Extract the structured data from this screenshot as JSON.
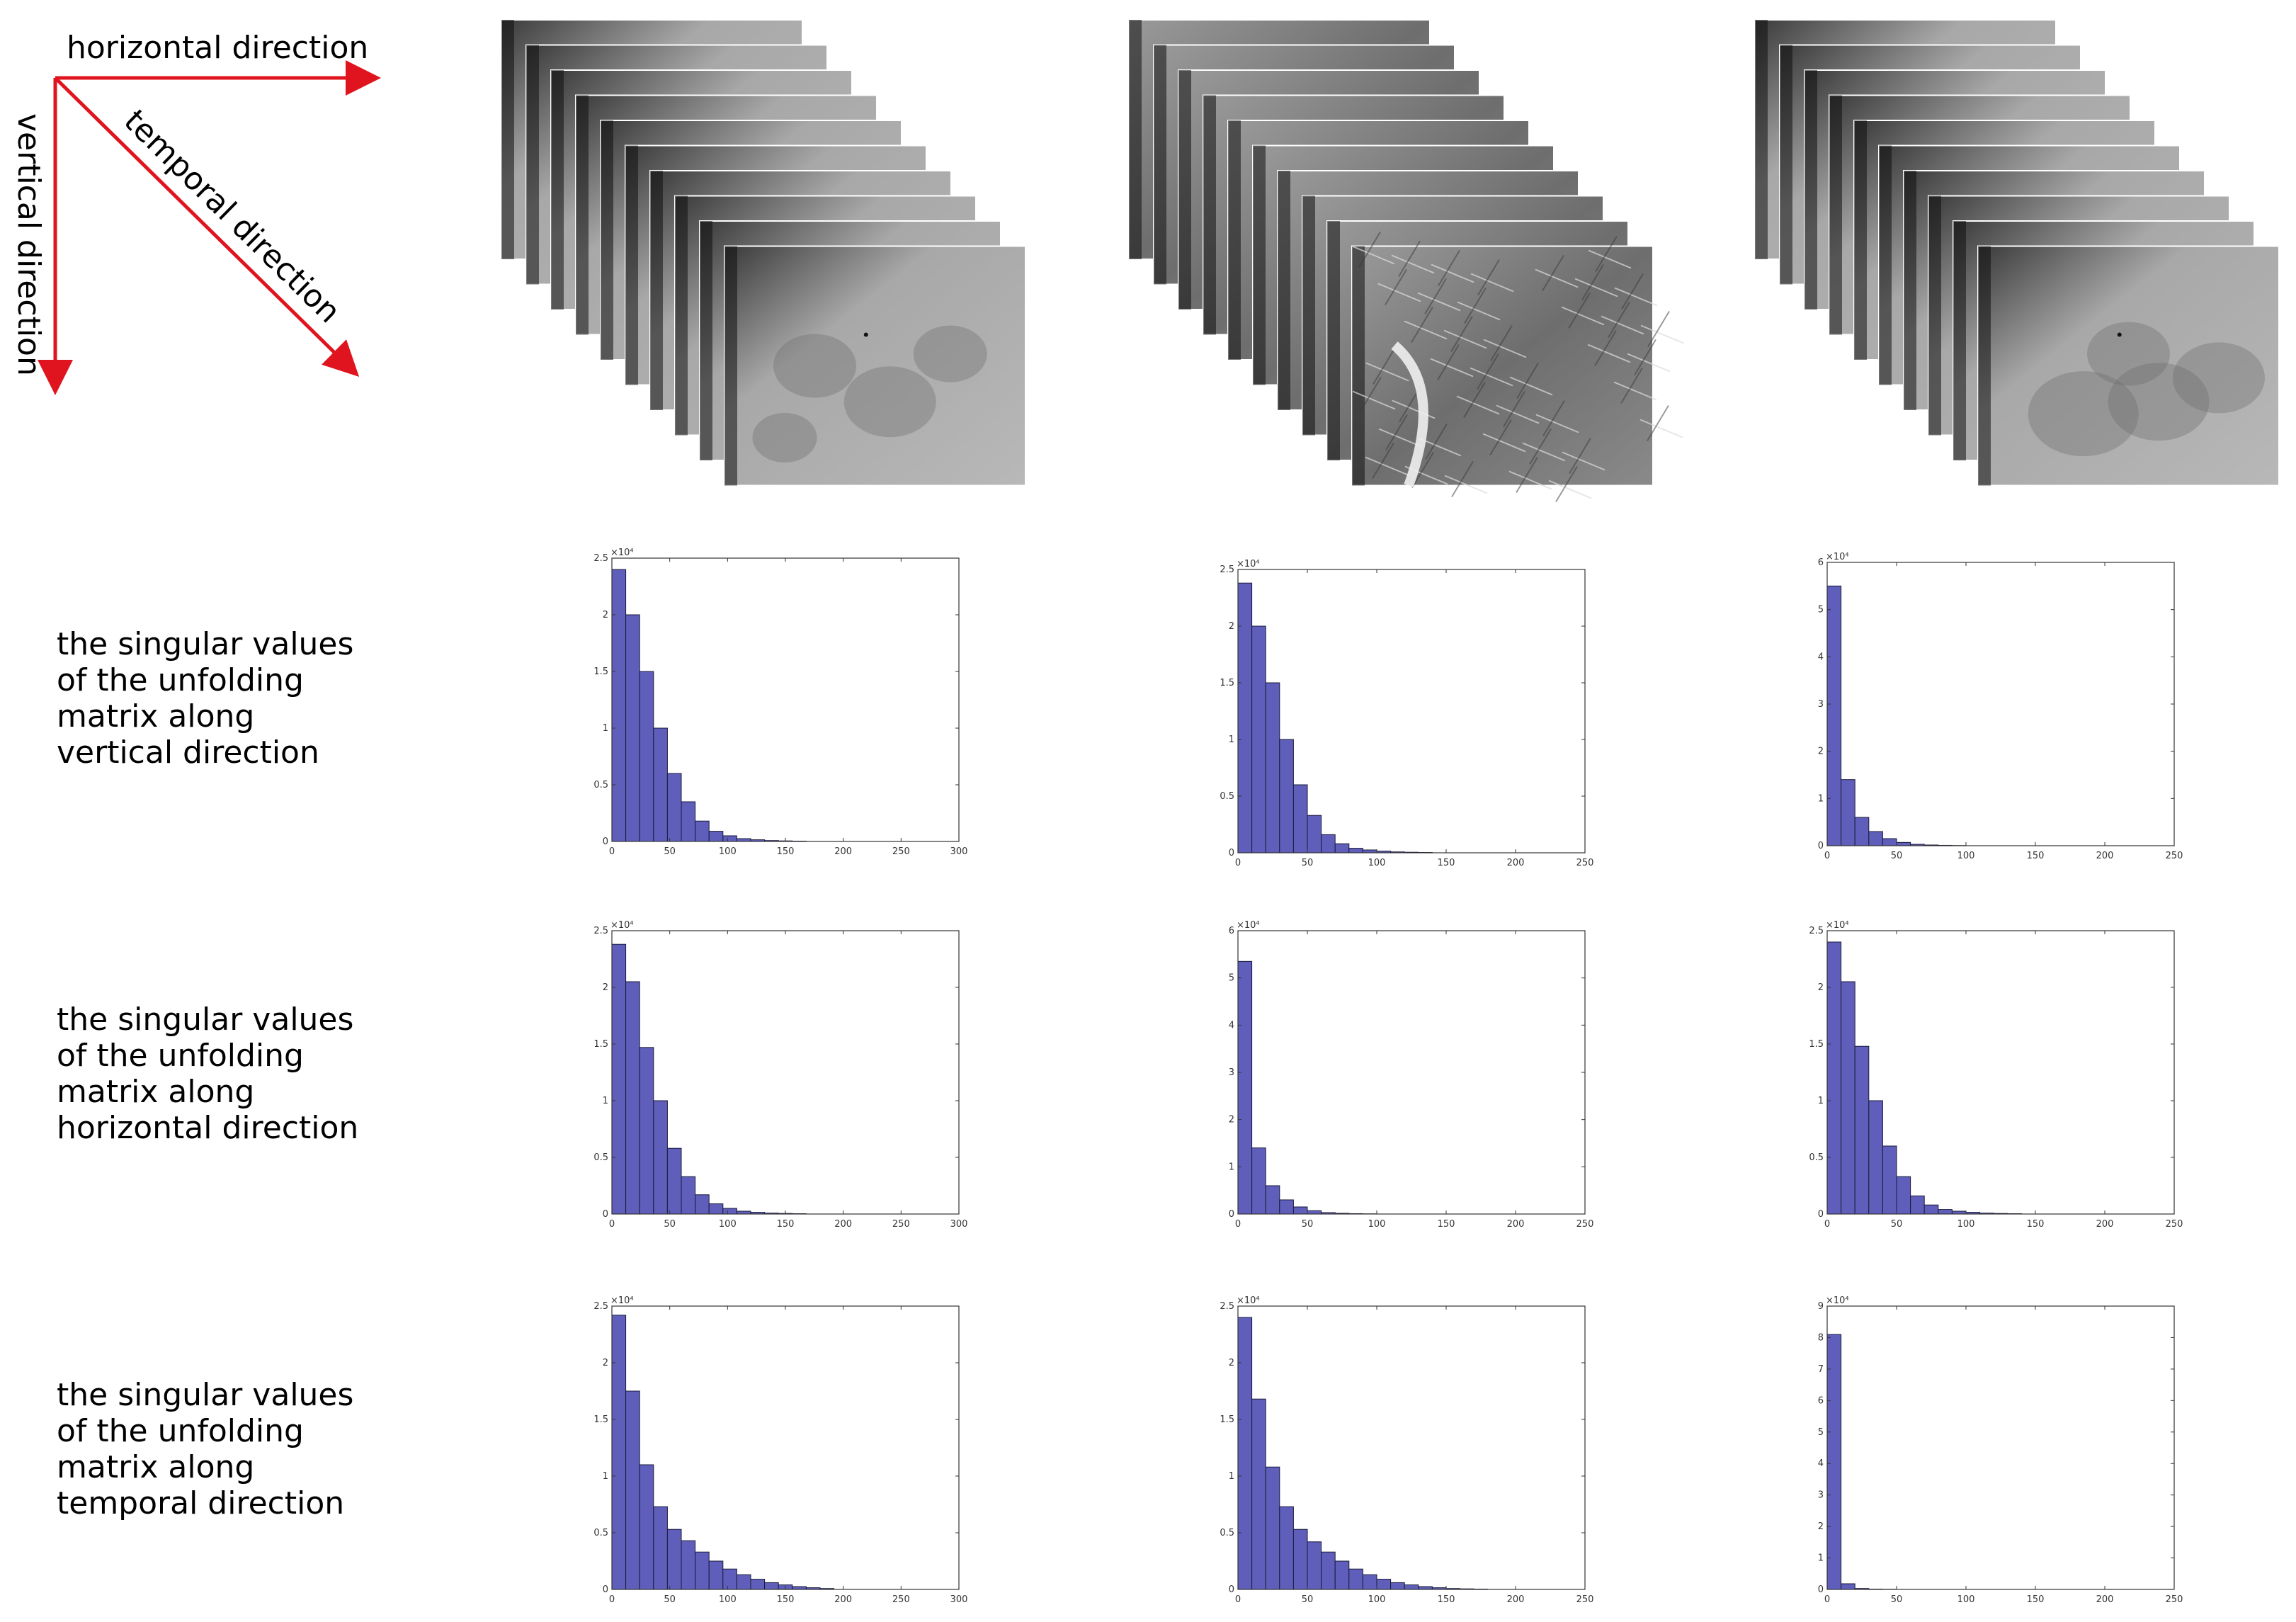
{
  "axes": {
    "horizontal": "horizontal direction",
    "temporal": "temporal direction",
    "vertical": "vertical direction",
    "arrow_color": "#e0141e"
  },
  "rows": [
    {
      "lines": [
        "the singular values",
        "of the unfolding",
        "matrix along",
        "vertical direction"
      ]
    },
    {
      "lines": [
        "the singular values",
        "of the unfolding",
        "matrix along",
        "horizontal direction"
      ]
    },
    {
      "lines": [
        "the singular values",
        "of the unfolding",
        "matrix along",
        "temporal direction"
      ]
    }
  ],
  "colors": {
    "bar_fill": "#5f5fbb",
    "bar_edge": "#1a1a3a",
    "axis": "#333333"
  },
  "chart_data": [
    {
      "type": "bar",
      "xlim": [
        0,
        300
      ],
      "ylim": [
        0,
        2.5
      ],
      "scale_label": "×10⁴",
      "xticks": [
        0,
        50,
        100,
        150,
        200,
        250,
        300
      ],
      "yticks": [
        0,
        0.5,
        1,
        1.5,
        2,
        2.5
      ],
      "bin_width": 12,
      "values": [
        2.4,
        2.0,
        1.5,
        1.0,
        0.6,
        0.35,
        0.18,
        0.09,
        0.05,
        0.025,
        0.015,
        0.008,
        0.005,
        0.003
      ]
    },
    {
      "type": "bar",
      "xlim": [
        0,
        250
      ],
      "ylim": [
        0,
        2.5
      ],
      "scale_label": "×10⁴",
      "xticks": [
        0,
        50,
        100,
        150,
        200,
        250
      ],
      "yticks": [
        0,
        0.5,
        1,
        1.5,
        2,
        2.5
      ],
      "bin_width": 10,
      "values": [
        2.38,
        2.0,
        1.5,
        1.0,
        0.6,
        0.33,
        0.16,
        0.08,
        0.04,
        0.025,
        0.015,
        0.008,
        0.005,
        0.003
      ]
    },
    {
      "type": "bar",
      "xlim": [
        0,
        250
      ],
      "ylim": [
        0,
        6
      ],
      "scale_label": "×10⁴",
      "xticks": [
        0,
        50,
        100,
        150,
        200,
        250
      ],
      "yticks": [
        0,
        1,
        2,
        3,
        4,
        5,
        6
      ],
      "bin_width": 10,
      "values": [
        5.5,
        1.4,
        0.6,
        0.3,
        0.15,
        0.07,
        0.03,
        0.015,
        0.008,
        0.004
      ]
    },
    {
      "type": "bar",
      "xlim": [
        0,
        300
      ],
      "ylim": [
        0,
        2.5
      ],
      "scale_label": "×10⁴",
      "xticks": [
        0,
        50,
        100,
        150,
        200,
        250,
        300
      ],
      "yticks": [
        0,
        0.5,
        1,
        1.5,
        2,
        2.5
      ],
      "bin_width": 12,
      "values": [
        2.38,
        2.05,
        1.47,
        1.0,
        0.58,
        0.33,
        0.17,
        0.09,
        0.05,
        0.025,
        0.015,
        0.008,
        0.005,
        0.003
      ]
    },
    {
      "type": "bar",
      "xlim": [
        0,
        250
      ],
      "ylim": [
        0,
        6
      ],
      "scale_label": "×10⁴",
      "xticks": [
        0,
        50,
        100,
        150,
        200,
        250
      ],
      "yticks": [
        0,
        1,
        2,
        3,
        4,
        5,
        6
      ],
      "bin_width": 10,
      "values": [
        5.35,
        1.4,
        0.6,
        0.3,
        0.15,
        0.07,
        0.03,
        0.015,
        0.008,
        0.004
      ]
    },
    {
      "type": "bar",
      "xlim": [
        0,
        250
      ],
      "ylim": [
        0,
        2.5
      ],
      "scale_label": "×10⁴",
      "xticks": [
        0,
        50,
        100,
        150,
        200,
        250
      ],
      "yticks": [
        0,
        0.5,
        1,
        1.5,
        2,
        2.5
      ],
      "bin_width": 10,
      "values": [
        2.4,
        2.05,
        1.48,
        1.0,
        0.6,
        0.33,
        0.16,
        0.08,
        0.04,
        0.025,
        0.015,
        0.008,
        0.005,
        0.003
      ]
    },
    {
      "type": "bar",
      "xlim": [
        0,
        300
      ],
      "ylim": [
        0,
        2.5
      ],
      "scale_label": "×10⁴",
      "xticks": [
        0,
        50,
        100,
        150,
        200,
        250,
        300
      ],
      "yticks": [
        0,
        0.5,
        1,
        1.5,
        2,
        2.5
      ],
      "bin_width": 12,
      "values": [
        2.42,
        1.75,
        1.1,
        0.73,
        0.53,
        0.43,
        0.33,
        0.25,
        0.18,
        0.13,
        0.09,
        0.06,
        0.04,
        0.025,
        0.015,
        0.008
      ]
    },
    {
      "type": "bar",
      "xlim": [
        0,
        250
      ],
      "ylim": [
        0,
        2.5
      ],
      "scale_label": "×10⁴",
      "xticks": [
        0,
        50,
        100,
        150,
        200,
        250
      ],
      "yticks": [
        0,
        0.5,
        1,
        1.5,
        2,
        2.5
      ],
      "bin_width": 10,
      "values": [
        2.4,
        1.68,
        1.08,
        0.73,
        0.53,
        0.42,
        0.33,
        0.25,
        0.18,
        0.13,
        0.09,
        0.06,
        0.04,
        0.025,
        0.015,
        0.008,
        0.005,
        0.003
      ]
    },
    {
      "type": "bar",
      "xlim": [
        0,
        250
      ],
      "ylim": [
        0,
        9
      ],
      "scale_label": "×10⁴",
      "xticks": [
        0,
        50,
        100,
        150,
        200,
        250
      ],
      "yticks": [
        0,
        1,
        2,
        3,
        4,
        5,
        6,
        7,
        8,
        9
      ],
      "bin_width": 10,
      "values": [
        8.1,
        0.18,
        0.03,
        0.01,
        0.005
      ]
    }
  ]
}
